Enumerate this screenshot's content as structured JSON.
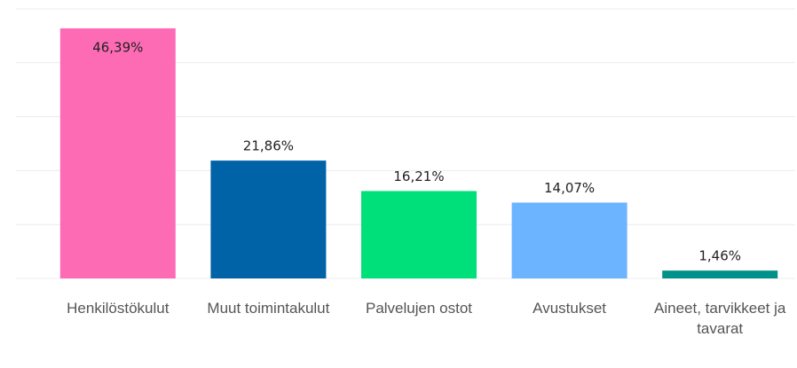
{
  "chart_data": {
    "type": "bar",
    "categories": [
      "Henkilöstökulut",
      "Muut toimintakulut",
      "Palvelujen ostot",
      "Avustukset",
      "Aineet, tarvikkeet ja tavarat"
    ],
    "values": [
      46.39,
      21.86,
      16.21,
      14.07,
      1.46
    ],
    "value_labels": [
      "46,39%",
      "21,86%",
      "16,21%",
      "14,07%",
      "1,46%"
    ],
    "colors": [
      "#fd6bb5",
      "#0063a8",
      "#00e07a",
      "#6cb4ff",
      "#00918a"
    ],
    "ylim": [
      0,
      50
    ],
    "yticks": [
      0,
      10,
      20,
      30,
      40,
      50
    ],
    "grid": true
  }
}
